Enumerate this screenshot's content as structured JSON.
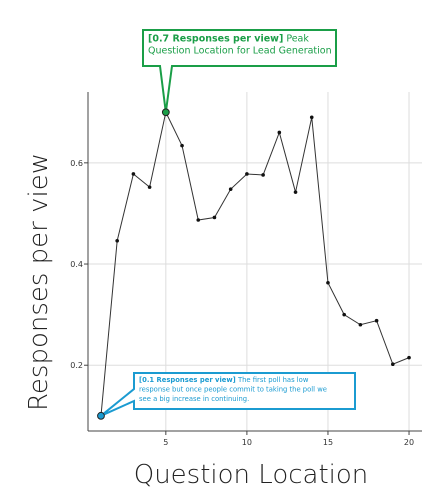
{
  "chart_data": {
    "type": "line",
    "title": "",
    "xlabel": "Question Location",
    "ylabel": "Responses per view",
    "xlim": [
      0.2,
      20.8
    ],
    "ylim": [
      0.07,
      0.74
    ],
    "xticks": [
      5,
      10,
      15,
      20
    ],
    "yticks": [
      0.2,
      0.4,
      0.6
    ],
    "grid": true,
    "x": [
      1,
      2,
      3,
      4,
      5,
      6,
      7,
      8,
      9,
      10,
      11,
      12,
      13,
      14,
      15,
      16,
      17,
      18,
      19,
      20
    ],
    "series": [
      {
        "values": [
          0.1,
          0.446,
          0.578,
          0.552,
          0.7,
          0.634,
          0.487,
          0.492,
          0.548,
          0.578,
          0.576,
          0.66,
          0.542,
          0.69,
          0.363,
          0.3,
          0.28,
          0.288,
          0.202,
          0.215
        ]
      }
    ],
    "annotations": [
      {
        "x": 5,
        "y": 0.7,
        "bold": "[0.7 Responses per view]",
        "lines": [
          "Peak",
          "Question Location for Lead Generation"
        ],
        "color": "#1a9e47"
      },
      {
        "x": 1,
        "y": 0.1,
        "bold": "[0.1 Responses per view]",
        "lines": [
          "The first poll has low",
          "response but once people commit to taking the poll we",
          "see a big increase in continuing."
        ],
        "color": "#1b9bd1"
      }
    ],
    "colors": {
      "line": "#333333",
      "marker": "#111111",
      "grid": "#dddddd",
      "axis": "#444444"
    }
  }
}
